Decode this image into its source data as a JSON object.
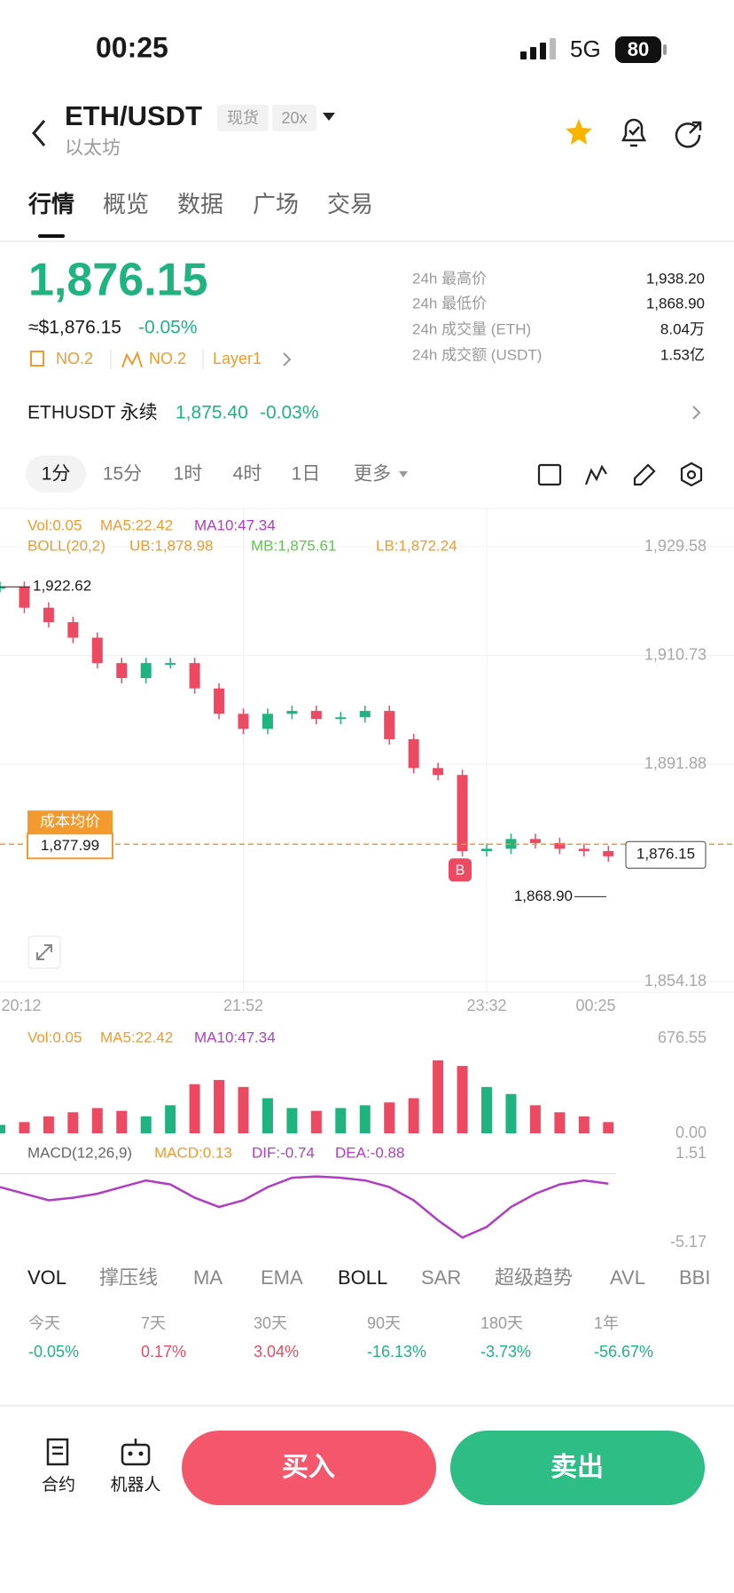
{
  "status_bar": {
    "time": "00:25",
    "network": "5G",
    "battery": "80"
  },
  "header": {
    "pair": "ETH/USDT",
    "tags": [
      "现货",
      "20x"
    ],
    "subtitle": "以太坊"
  },
  "tabs": [
    "行情",
    "概览",
    "数据",
    "广场",
    "交易"
  ],
  "price": {
    "last": "1,876.15",
    "usd": "≈$1,876.15",
    "change": "-0.05%",
    "badges": [
      "NO.2",
      "NO.2",
      "Layer1"
    ]
  },
  "stats": [
    {
      "label": "24h 最高价",
      "value": "1,938.20"
    },
    {
      "label": "24h 最低价",
      "value": "1,868.90"
    },
    {
      "label": "24h 成交量 (ETH)",
      "value": "8.04万"
    },
    {
      "label": "24h 成交额 (USDT)",
      "value": "1.53亿"
    }
  ],
  "perp": {
    "name": "ETHUSDT 永续",
    "price": "1,875.40",
    "change": "-0.03%"
  },
  "intervals": [
    "1分",
    "15分",
    "1时",
    "4时",
    "1日",
    "更多"
  ],
  "legend": {
    "vol": "Vol:0.05",
    "ma5": "MA5:22.42",
    "ma10": "MA10:47.34",
    "boll": "BOLL(20,2)",
    "ub": "UB:1,878.98",
    "mb": "MB:1,875.61",
    "lb": "LB:1,872.24",
    "macd": "MACD(12,26,9)",
    "macd_val": "MACD:0.13",
    "dif": "DIF:-0.74",
    "dea": "DEA:-0.88"
  },
  "indicators": [
    "VOL",
    "撑压线",
    "MA",
    "EMA",
    "BOLL",
    "SAR",
    "超级趋势",
    "AVL",
    "BBI"
  ],
  "performance": [
    {
      "label": "今天",
      "value": "-0.05%"
    },
    {
      "label": "7天",
      "value": "0.17%"
    },
    {
      "label": "30天",
      "value": "3.04%"
    },
    {
      "label": "90天",
      "value": "-16.13%"
    },
    {
      "label": "180天",
      "value": "-3.73%"
    },
    {
      "label": "1年",
      "value": "-56.67%"
    }
  ],
  "bottom_bar": {
    "contract": "合约",
    "robot": "机器人",
    "buy": "买入",
    "sell": "卖出"
  },
  "chart_data": [
    {
      "type": "candlestick",
      "values": [
        1922.6,
        1919,
        1916.5,
        1913.8,
        1909.4,
        1906.8,
        1909.4,
        1909.4,
        1905,
        1900.6,
        1898,
        1900.6,
        1901.1,
        1899.7,
        1900,
        1901.1,
        1896.2,
        1891.2,
        1890,
        1876.8,
        1877.2,
        1878.9,
        1878.2,
        1877.2,
        1876.8,
        1875.9
      ],
      "up_color": "#1fb47f",
      "down_color": "#ec4a62",
      "xlim": [
        0,
        25.3
      ],
      "xticks": [
        {
          "value": 0,
          "label": "20:12"
        },
        {
          "value": 10,
          "label": "21:52"
        },
        {
          "value": 20,
          "label": "23:32"
        },
        {
          "value": 25.3,
          "label": "00:25"
        }
      ],
      "ylim": [
        1854.18,
        1929.58
      ],
      "yticks": [
        {
          "value": 1929.58,
          "label": "1,929.58"
        },
        {
          "value": 1910.73,
          "label": "1,910.73"
        },
        {
          "value": 1891.88,
          "label": "1,891.88"
        },
        {
          "value": 1854.18,
          "label": "1,854.18"
        }
      ],
      "grid": true,
      "high": {
        "value": 1922.62,
        "label": "1,922.62"
      },
      "low": {
        "value": 1868.9,
        "label": "1,868.90"
      },
      "cost": {
        "title": "成本均价",
        "value": 1877.99,
        "label": "1,877.99"
      },
      "last": {
        "value": 1876.15,
        "label": "1,876.15"
      },
      "marker": "B"
    },
    {
      "type": "bar",
      "values": [
        60,
        80,
        120,
        150,
        180,
        160,
        120,
        200,
        350,
        380,
        330,
        250,
        180,
        160,
        180,
        200,
        220,
        250,
        520,
        480,
        330,
        280,
        200,
        150,
        120,
        80
      ],
      "xlim": [
        0,
        25.3
      ],
      "ylim": [
        0,
        676.55
      ],
      "yticks": [
        {
          "value": 676.55,
          "label": "676.55"
        },
        {
          "value": 0,
          "label": "0.00"
        }
      ]
    },
    {
      "type": "line",
      "values": [
        -1,
        -1.5,
        -2,
        -1.8,
        -1.5,
        -1,
        -0.5,
        -0.8,
        -1.8,
        -2.5,
        -2,
        -1,
        -0.3,
        -0.2,
        -0.3,
        -0.5,
        -1,
        -2,
        -3.5,
        -4.8,
        -4,
        -2.5,
        -1.5,
        -0.8,
        -0.5,
        -0.74
      ],
      "color": "#b13cc4",
      "xlim": [
        0,
        25.3
      ],
      "ylim": [
        -5.17,
        1.51
      ],
      "yticks": [
        1.51,
        -5.17
      ]
    }
  ]
}
